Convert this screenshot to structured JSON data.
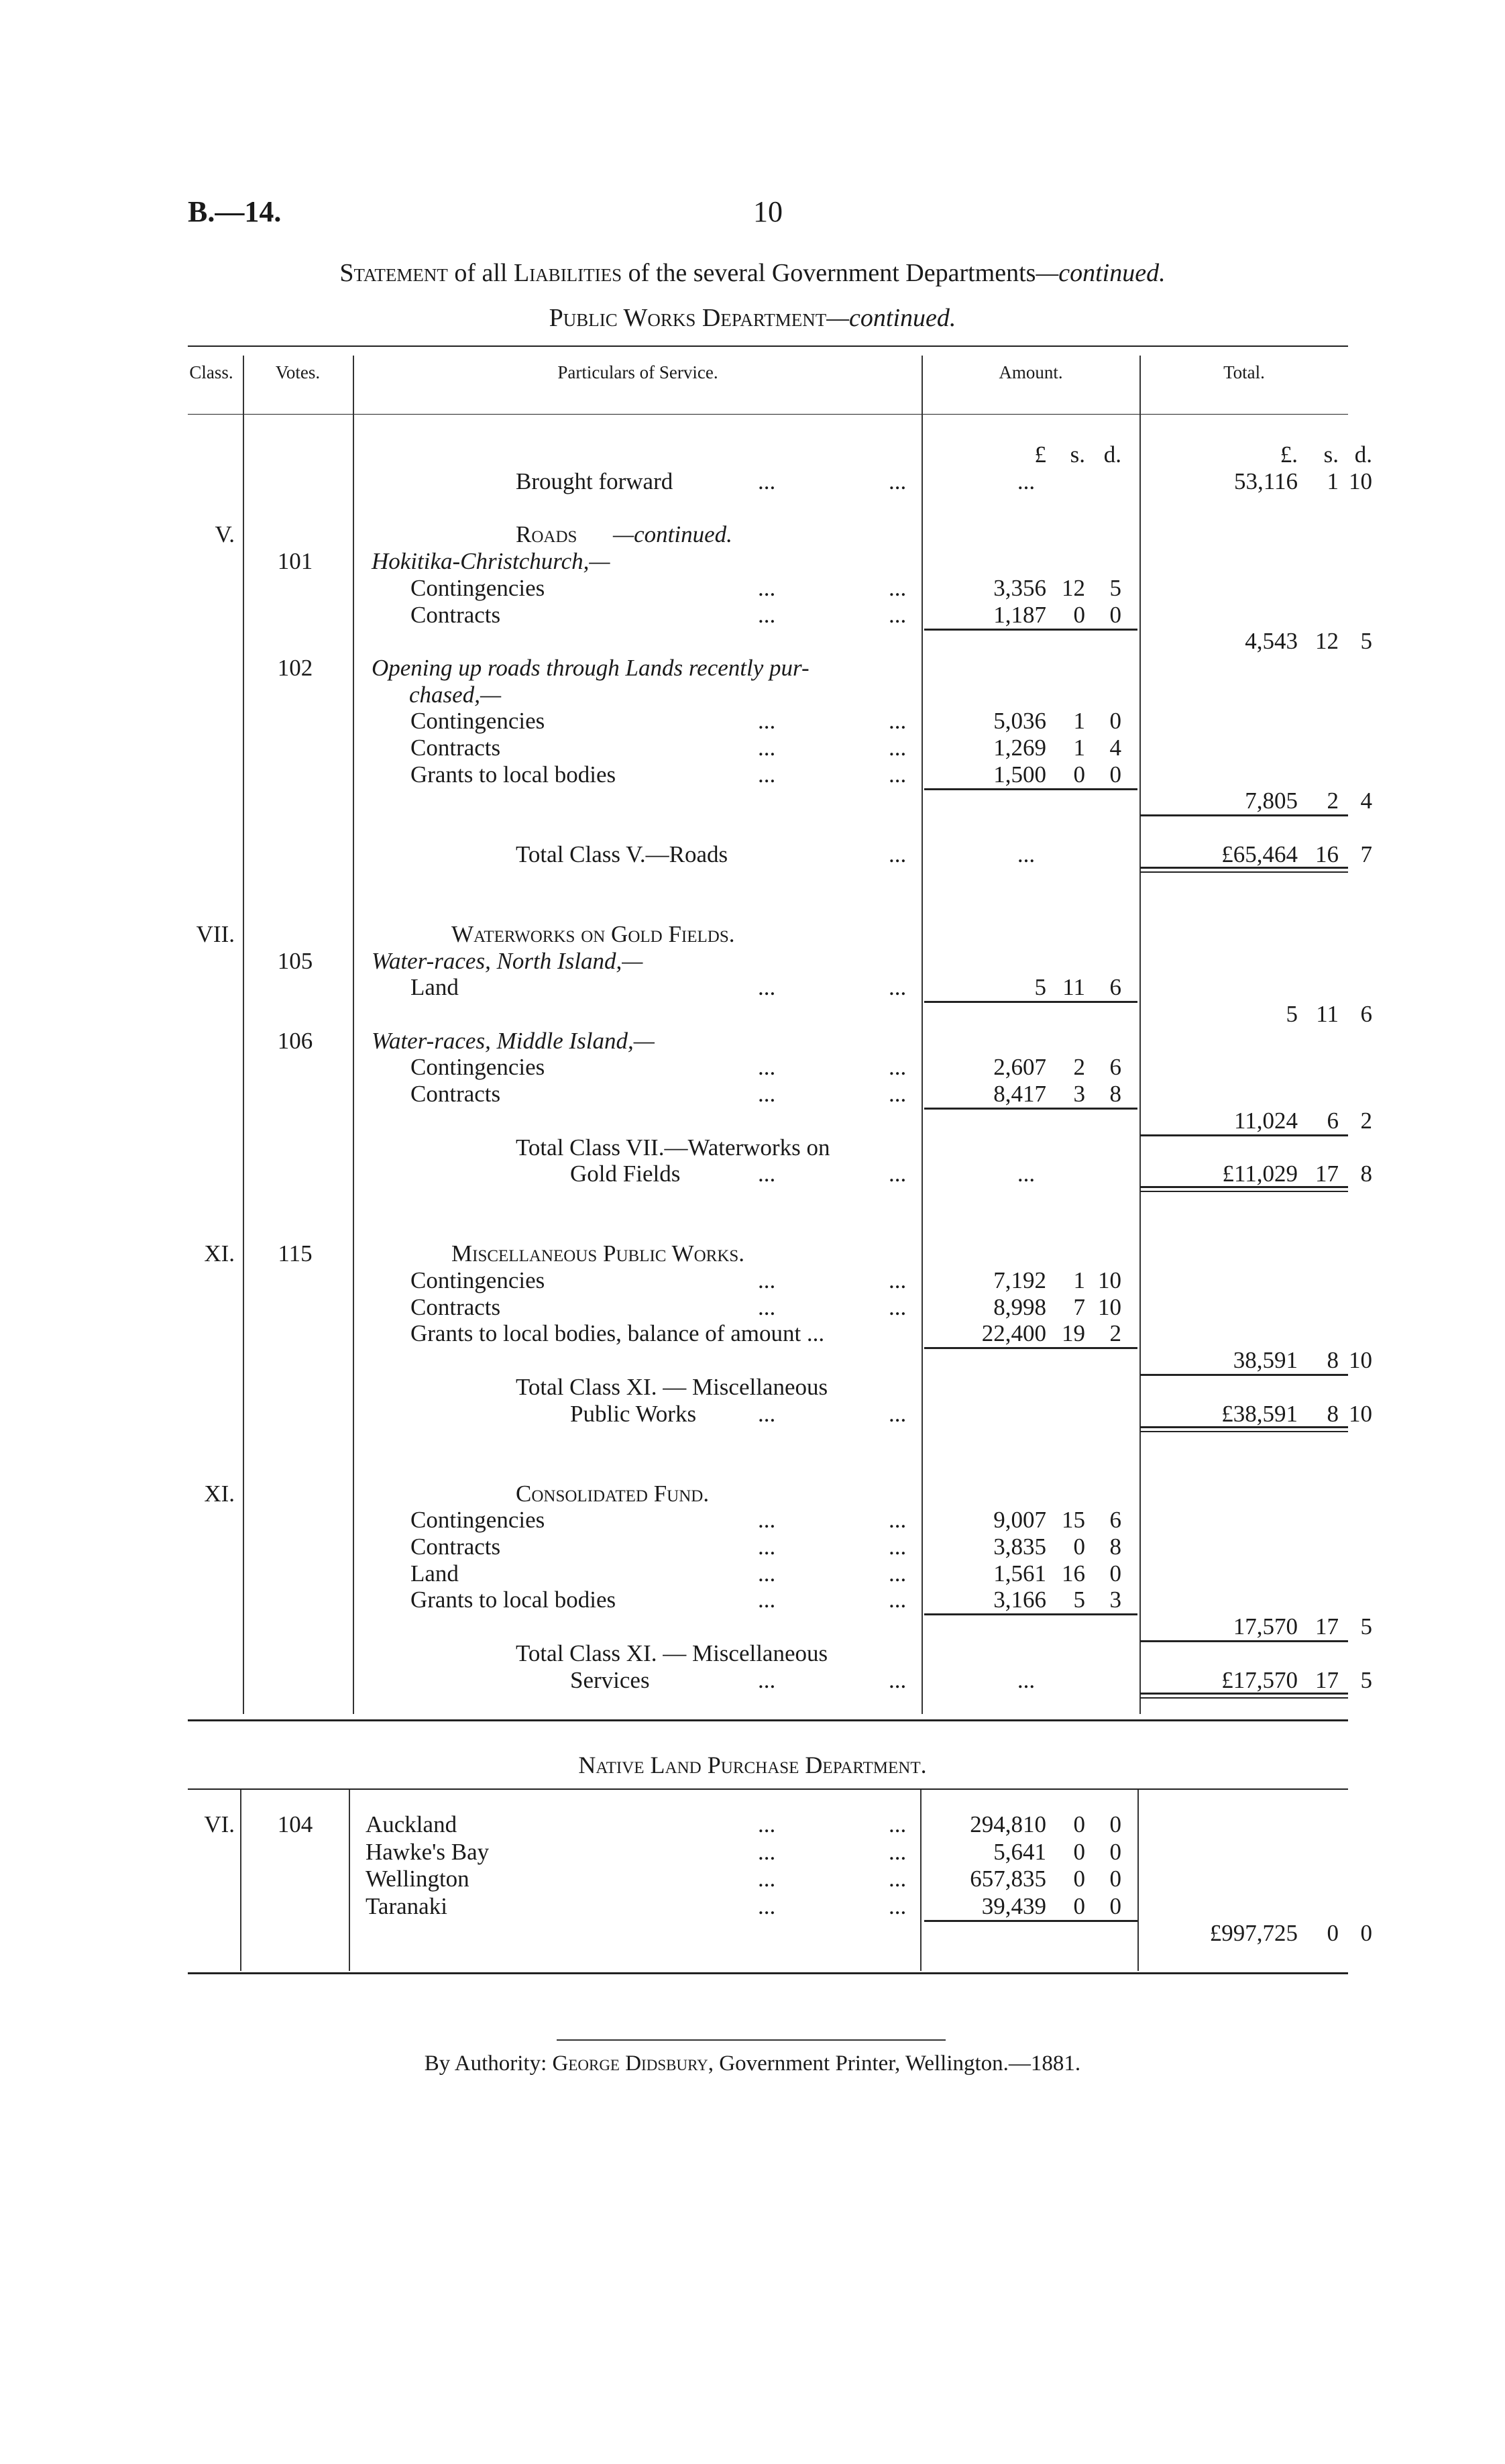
{
  "header": {
    "ref": "B.—14.",
    "page": "10"
  },
  "title": {
    "pre": "Statement",
    "mid1": " of all ",
    "liab": "Liabilities",
    "mid2": " of the several Government Departments",
    "cont": "—continued."
  },
  "subtitle": {
    "main": "Public Works Department",
    "cont": "—continued."
  },
  "columns": {
    "class": "Class.",
    "votes": "Votes.",
    "particulars": "Particulars of Service.",
    "amount": "Amount.",
    "total": "Total."
  },
  "units": {
    "amount": [
      "£",
      "s.",
      "d."
    ],
    "total": [
      "£.",
      "s.",
      "d."
    ]
  },
  "rows": [
    {
      "t": "Brought forward",
      "k": "tot",
      "dots": true,
      "a": [
        "...",
        "",
        ""
      ],
      "T": [
        "53,116",
        "1",
        "10"
      ]
    },
    {},
    {
      "c": "V.",
      "t": "Roads",
      "ti": "—continued.",
      "k": "head"
    },
    {
      "v": "101",
      "t": "Hokitika-Christchurch,—",
      "k": "ital"
    },
    {
      "t": "Contingencies",
      "k": "item",
      "dots": true,
      "a": [
        "3,356",
        "12",
        "5"
      ]
    },
    {
      "t": "Contracts",
      "k": "item",
      "dots": true,
      "a": [
        "1,187",
        "0",
        "0"
      ],
      "r": "a"
    },
    {
      "T": [
        "4,543",
        "12",
        "5"
      ]
    },
    {
      "v": "102",
      "t": "Opening up roads through Lands recently pur-",
      "k": "ital"
    },
    {
      "t": "chased,—",
      "k": "ital2"
    },
    {
      "t": "Contingencies",
      "k": "item",
      "dots": true,
      "a": [
        "5,036",
        "1",
        "0"
      ]
    },
    {
      "t": "Contracts",
      "k": "item",
      "dots": true,
      "a": [
        "1,269",
        "1",
        "4"
      ]
    },
    {
      "t": "Grants to local bodies",
      "k": "item",
      "dots": true,
      "a": [
        "1,500",
        "0",
        "0"
      ],
      "r": "a"
    },
    {
      "T": [
        "7,805",
        "2",
        "4"
      ],
      "r": "t"
    },
    {},
    {
      "t": "Total Class V.—Roads",
      "k": "tot",
      "dots2": true,
      "a": [
        "...",
        "",
        ""
      ],
      "T": [
        "£65,464",
        "16",
        "7"
      ],
      "r": "tt"
    },
    {},
    {},
    {
      "c": "VII.",
      "t": "Waterworks on Gold Fields.",
      "k": "head2"
    },
    {
      "v": "105",
      "t": "Water-races, North Island,—",
      "k": "ital"
    },
    {
      "t": "Land",
      "k": "item",
      "dots": true,
      "a": [
        "5",
        "11",
        "6"
      ],
      "r": "a"
    },
    {
      "T": [
        "5",
        "11",
        "6"
      ]
    },
    {
      "v": "106",
      "t": "Water-races, Middle Island,—",
      "k": "ital"
    },
    {
      "t": "Contingencies",
      "k": "item",
      "dots": true,
      "a": [
        "2,607",
        "2",
        "6"
      ]
    },
    {
      "t": "Contracts",
      "k": "item",
      "dots": true,
      "a": [
        "8,417",
        "3",
        "8"
      ],
      "r": "a"
    },
    {
      "T": [
        "11,024",
        "6",
        "2"
      ],
      "r": "t"
    },
    {
      "t": "Total Class VII.—Waterworks on",
      "k": "tot"
    },
    {
      "t": "Gold Fields",
      "k": "tot3",
      "dots": true,
      "a": [
        "...",
        "",
        ""
      ],
      "T": [
        "£11,029",
        "17",
        "8"
      ],
      "r": "tt"
    },
    {},
    {},
    {
      "c": "XI.",
      "v": "115",
      "t": "Miscellaneous Public Works.",
      "k": "head2"
    },
    {
      "t": "Contingencies",
      "k": "item",
      "dots": true,
      "a": [
        "7,192",
        "1",
        "10"
      ]
    },
    {
      "t": "Contracts",
      "k": "item",
      "dots": true,
      "a": [
        "8,998",
        "7",
        "10"
      ]
    },
    {
      "t": "Grants to local bodies, balance of amount ...",
      "k": "item",
      "a": [
        "22,400",
        "19",
        "2"
      ],
      "r": "a"
    },
    {
      "T": [
        "38,591",
        "8",
        "10"
      ],
      "r": "t"
    },
    {
      "t": "Total  Class  XI. — Miscellaneous",
      "k": "tot"
    },
    {
      "t": "Public Works",
      "k": "tot3",
      "dots": true,
      "T": [
        "£38,591",
        "8",
        "10"
      ],
      "r": "tt"
    },
    {},
    {},
    {
      "c": "XI.",
      "t": "Consolidated Fund.",
      "k": "head"
    },
    {
      "t": "Contingencies",
      "k": "item",
      "dots": true,
      "a": [
        "9,007",
        "15",
        "6"
      ]
    },
    {
      "t": "Contracts",
      "k": "item",
      "dots": true,
      "a": [
        "3,835",
        "0",
        "8"
      ]
    },
    {
      "t": "Land",
      "k": "item",
      "dots": true,
      "a": [
        "1,561",
        "16",
        "0"
      ]
    },
    {
      "t": "Grants to local bodies",
      "k": "item",
      "dots": true,
      "a": [
        "3,166",
        "5",
        "3"
      ],
      "r": "a"
    },
    {
      "T": [
        "17,570",
        "17",
        "5"
      ],
      "r": "t"
    },
    {
      "t": "Total  Class  XI. — Miscellaneous",
      "k": "tot"
    },
    {
      "t": "Services",
      "k": "tot3",
      "dots": true,
      "a": [
        "...",
        "",
        ""
      ],
      "T": [
        "£17,570",
        "17",
        "5"
      ],
      "r": "tt"
    }
  ],
  "native": {
    "title": "Native Land Purchase Department.",
    "rows": [
      {
        "c": "VI.",
        "v": "104",
        "t": "Auckland",
        "k": "place",
        "dots": true,
        "a": [
          "294,810",
          "0",
          "0"
        ]
      },
      {
        "t": "Hawke's Bay",
        "k": "place",
        "dots": true,
        "a": [
          "5,641",
          "0",
          "0"
        ]
      },
      {
        "t": "Wellington",
        "k": "place",
        "dots": true,
        "a": [
          "657,835",
          "0",
          "0"
        ]
      },
      {
        "t": "Taranaki",
        "k": "place",
        "dots": true,
        "a": [
          "39,439",
          "0",
          "0"
        ],
        "r": "a"
      },
      {
        "T": [
          "£997,725",
          "0",
          "0"
        ]
      }
    ]
  },
  "footer": {
    "pre": "By Authority: ",
    "printer": "George Didsbury",
    "post": ", Government Printer, Wellington.—1881."
  }
}
